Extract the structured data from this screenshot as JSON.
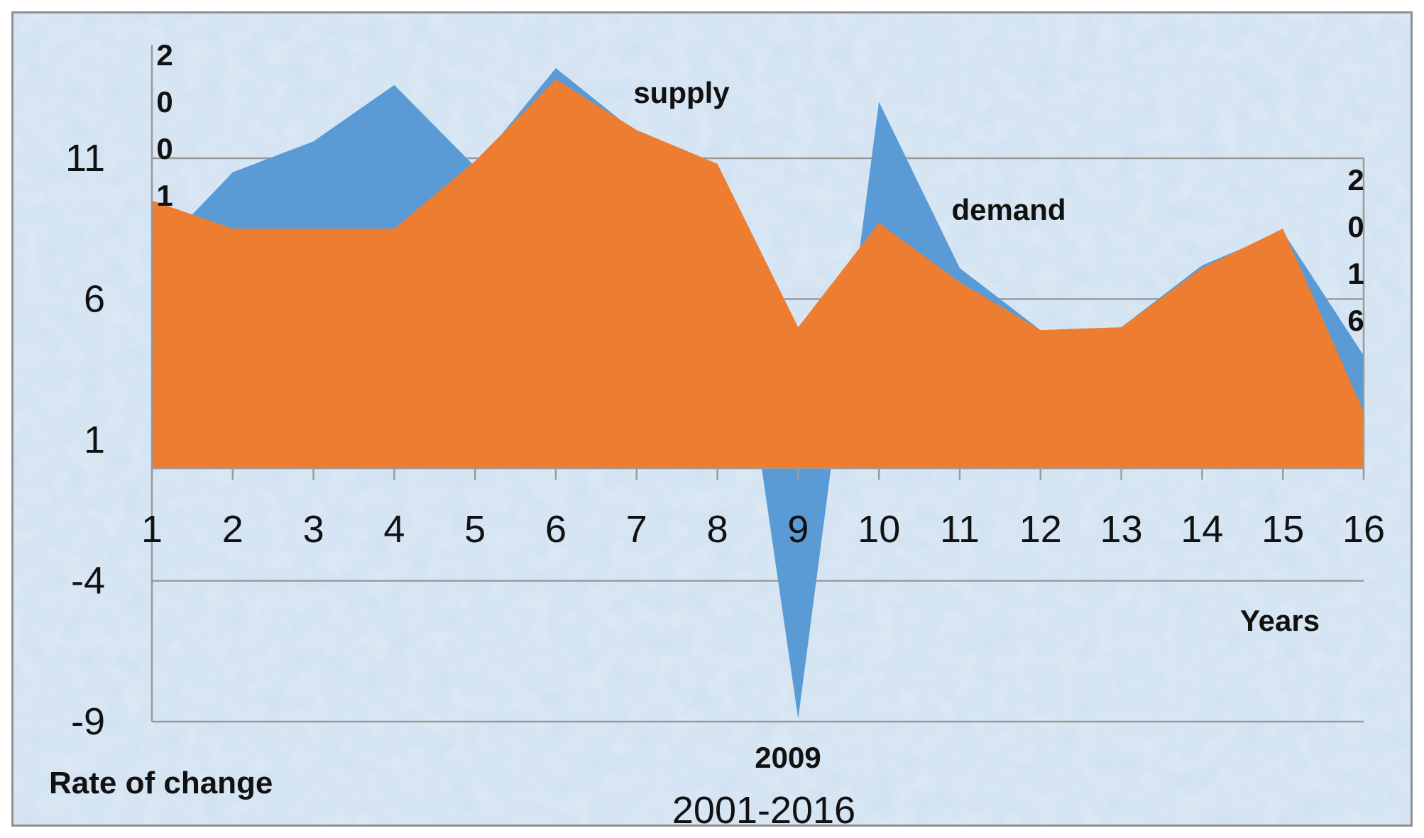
{
  "chart_data": {
    "type": "area",
    "x": [
      1,
      2,
      3,
      4,
      5,
      6,
      7,
      8,
      9,
      10,
      11,
      12,
      13,
      14,
      15,
      16
    ],
    "series": [
      {
        "name": "supply",
        "color": "#5b9bd5",
        "values": [
          7.5,
          10.5,
          11.6,
          13.6,
          10.7,
          14.2,
          11.9,
          10.8,
          -8.9,
          13.0,
          7.1,
          4.9,
          5.0,
          7.2,
          8.4,
          4.0
        ]
      },
      {
        "name": "demand",
        "color": "#ed7d31",
        "values": [
          9.5,
          8.5,
          8.5,
          8.5,
          10.9,
          13.8,
          12.0,
          10.8,
          5.0,
          8.7,
          6.6,
          4.9,
          5.0,
          7.1,
          8.5,
          2.0
        ]
      }
    ],
    "ylim": [
      -9,
      15
    ],
    "yticks": [
      "11",
      "6",
      "1",
      "-4",
      "-9"
    ],
    "xticks": [
      "1",
      "2",
      "3",
      "4",
      "5",
      "6",
      "7",
      "8",
      "9",
      "10",
      "11",
      "12",
      "13",
      "14",
      "15",
      "16"
    ],
    "grid": true,
    "xlabel": "Years",
    "ylabel": "Rate of change",
    "subtitle": "2001-2016",
    "annotations": {
      "supply": "supply",
      "demand": "demand",
      "year_2009": "2009",
      "start_year_chars": [
        "2",
        "0",
        "0",
        "1"
      ],
      "end_year_chars": [
        "2",
        "0",
        "1",
        "6"
      ]
    },
    "background_color": "#d2e2f2",
    "grid_color": "#9a9a9a"
  }
}
